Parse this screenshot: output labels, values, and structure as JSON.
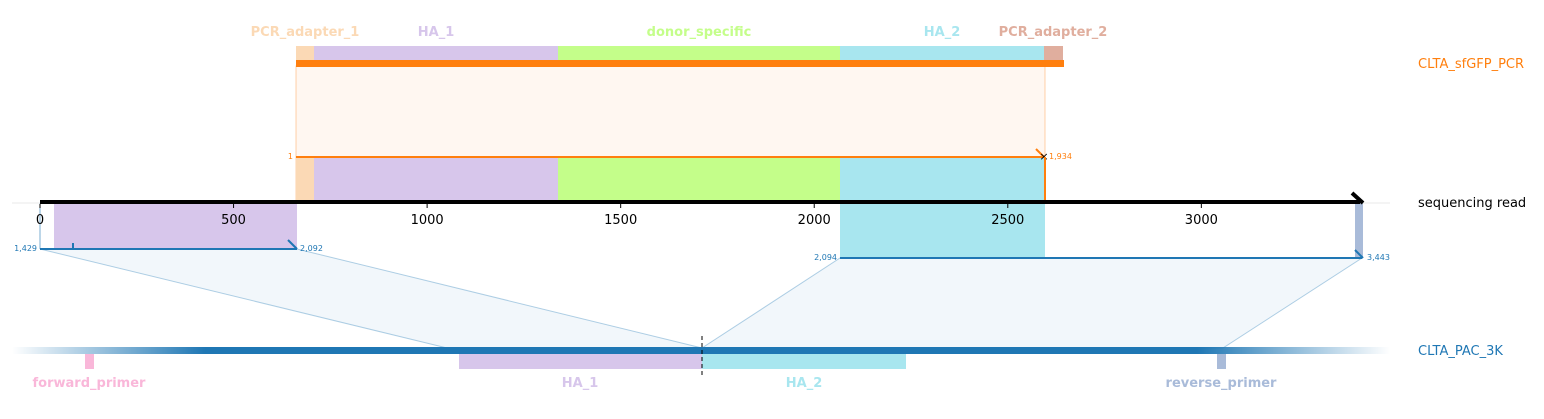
{
  "targets": {
    "pcr": {
      "name": "CLTA_sfGFP_PCR",
      "color": "#ff7f0e",
      "start_label": "1",
      "end_label": "1,934",
      "features": [
        {
          "name": "PCR_adapter_1",
          "color": "#fbd9b5"
        },
        {
          "name": "HA_1",
          "color": "#d7c6eb"
        },
        {
          "name": "donor_specific",
          "color": "#c4fe8a"
        },
        {
          "name": "HA_2",
          "color": "#a8e6ef"
        },
        {
          "name": "PCR_adapter_2",
          "color": "#e0ae9e"
        }
      ]
    },
    "genome": {
      "name": "CLTA_PAC_3K",
      "color": "#1f77b4",
      "features": [
        {
          "name": "forward_primer",
          "color": "#f9b7d9"
        },
        {
          "name": "HA_1",
          "color": "#d7c6eb"
        },
        {
          "name": "HA_2",
          "color": "#a8e6ef"
        },
        {
          "name": "reverse_primer",
          "color": "#a9bbd9"
        }
      ]
    }
  },
  "read": {
    "name": "sequencing read",
    "axis_min": 0,
    "axis_max": 3415,
    "ticks": [
      "0",
      "500",
      "1000",
      "1500",
      "2000",
      "2500",
      "3000"
    ]
  },
  "alignments": {
    "left": {
      "start_label": "1,429",
      "end_label": "2,092"
    },
    "right": {
      "start_label": "2,094",
      "end_label": "3,443"
    }
  }
}
